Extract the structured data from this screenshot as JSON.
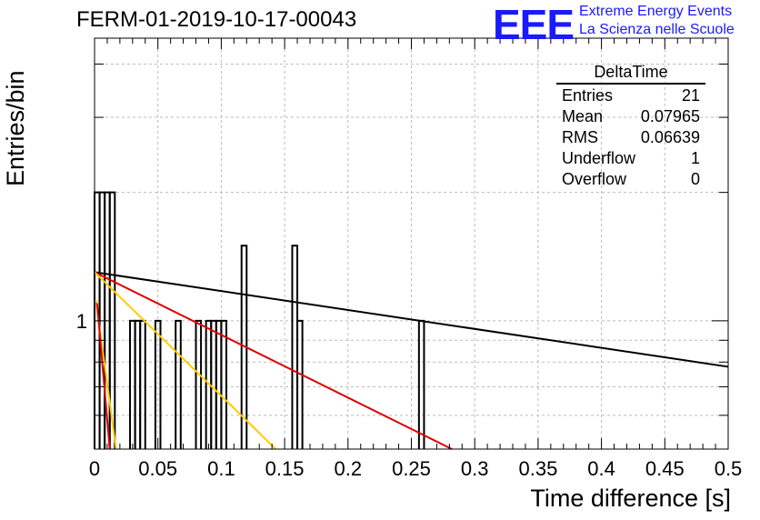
{
  "title": "FERM-01-2019-10-17-00043",
  "logo": {
    "text": "EEE",
    "line1": "Extreme Energy Events",
    "line2": "La Scienza nelle Scuole"
  },
  "stats": {
    "name": "DeltaTime",
    "rows": [
      {
        "label": "Entries",
        "value": "21"
      },
      {
        "label": "Mean",
        "value": "0.07965"
      },
      {
        "label": "RMS",
        "value": "0.06639"
      },
      {
        "label": "Underflow",
        "value": "1"
      },
      {
        "label": "Overflow",
        "value": "0"
      }
    ]
  },
  "chart_data": {
    "type": "bar",
    "subtype": "histogram",
    "xlabel": "Time difference [s]",
    "ylabel": "Entries/bin",
    "xlim": [
      0,
      0.5
    ],
    "ylog": true,
    "xticks": [
      "0",
      "0.05",
      "0.1",
      "0.15",
      "0.2",
      "0.25",
      "0.3",
      "0.35",
      "0.4",
      "0.45",
      "0.5"
    ],
    "ytick_label": "1",
    "grid": true,
    "bin_width": 0.004,
    "bins": [
      {
        "x": 0.0,
        "count": 2
      },
      {
        "x": 0.004,
        "count": 2
      },
      {
        "x": 0.008,
        "count": 2
      },
      {
        "x": 0.012,
        "count": 2
      },
      {
        "x": 0.028,
        "count": 1
      },
      {
        "x": 0.032,
        "count": 1
      },
      {
        "x": 0.036,
        "count": 1
      },
      {
        "x": 0.048,
        "count": 1
      },
      {
        "x": 0.064,
        "count": 1
      },
      {
        "x": 0.08,
        "count": 1
      },
      {
        "x": 0.088,
        "count": 1
      },
      {
        "x": 0.092,
        "count": 1
      },
      {
        "x": 0.096,
        "count": 1
      },
      {
        "x": 0.1,
        "count": 1
      },
      {
        "x": 0.116,
        "count": 1.5
      },
      {
        "x": 0.156,
        "count": 1.5
      },
      {
        "x": 0.16,
        "count": 1
      },
      {
        "x": 0.256,
        "count": 1
      }
    ],
    "fit_lines": [
      {
        "color": "#000000",
        "points": [
          [
            0,
            1.3
          ],
          [
            0.5,
            0.78
          ]
        ]
      },
      {
        "color": "#dd0000",
        "points": [
          [
            0,
            1.3
          ],
          [
            0.282,
            0.5
          ]
        ]
      },
      {
        "color": "#ffcc00",
        "points": [
          [
            0,
            1.3
          ],
          [
            0.143,
            0.5
          ]
        ]
      },
      {
        "color": "#ffcc00",
        "points": [
          [
            0.001,
            1.12
          ],
          [
            0.017,
            0.5
          ]
        ]
      },
      {
        "color": "#dd0000",
        "points": [
          [
            0.002,
            1.1
          ],
          [
            0.012,
            0.5
          ]
        ]
      }
    ]
  }
}
